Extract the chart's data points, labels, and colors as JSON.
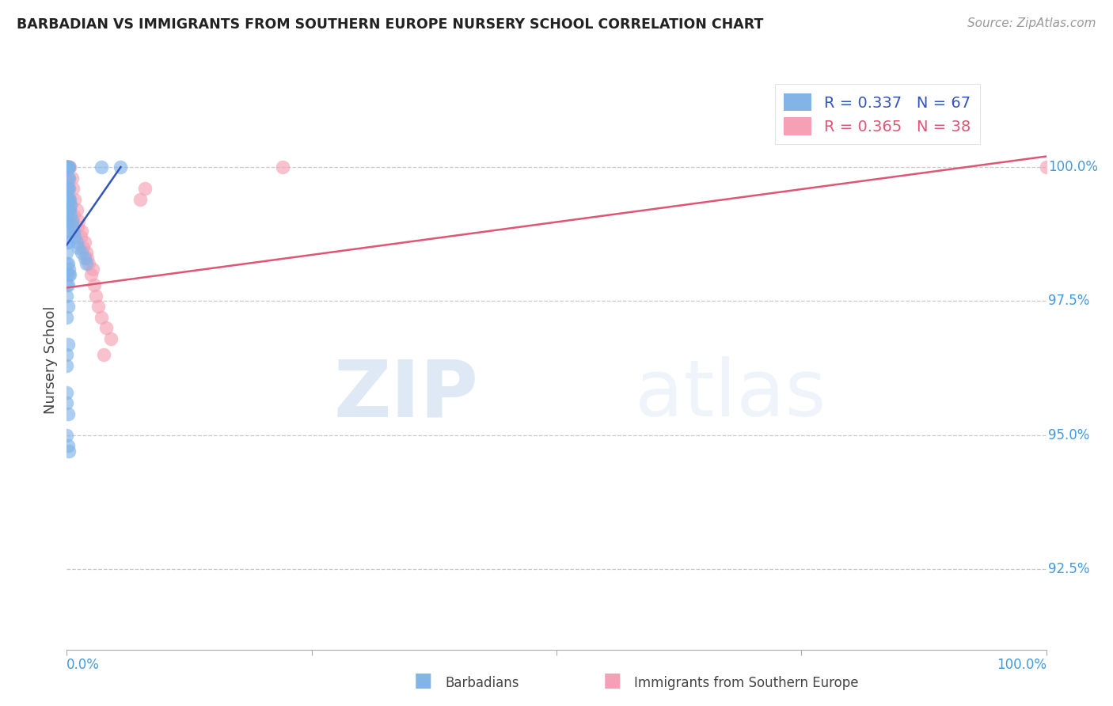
{
  "title": "BARBADIAN VS IMMIGRANTS FROM SOUTHERN EUROPE NURSERY SCHOOL CORRELATION CHART",
  "source": "Source: ZipAtlas.com",
  "ylabel": "Nursery School",
  "ylabel_right_ticks": [
    "100.0%",
    "97.5%",
    "95.0%",
    "92.5%"
  ],
  "ylabel_right_values": [
    100.0,
    97.5,
    95.0,
    92.5
  ],
  "legend_label1": "Barbadians",
  "legend_label2": "Immigrants from Southern Europe",
  "r1": 0.337,
  "n1": 67,
  "r2": 0.365,
  "n2": 38,
  "color_blue": "#82b4e8",
  "color_pink": "#f5a0b5",
  "color_blue_line": "#3355bb",
  "color_pink_line": "#e05575",
  "color_axis_label": "#4499dd",
  "xlim": [
    0.0,
    100.0
  ],
  "ylim": [
    91.0,
    101.8
  ],
  "blue_x": [
    0.0,
    0.0,
    0.0,
    0.0,
    0.0,
    0.0,
    0.0,
    0.0,
    0.0,
    0.0,
    0.0,
    0.0,
    0.0,
    0.0,
    0.0,
    0.0,
    0.0,
    0.0,
    0.0,
    0.0,
    0.1,
    0.1,
    0.1,
    0.1,
    0.1,
    0.1,
    0.1,
    0.1,
    0.1,
    0.1,
    0.2,
    0.2,
    0.2,
    0.2,
    0.2,
    0.3,
    0.3,
    0.4,
    0.4,
    0.5,
    0.6,
    0.7,
    0.8,
    1.0,
    1.2,
    1.5,
    1.8,
    2.0,
    3.5,
    5.5,
    0.0,
    0.1,
    0.2,
    0.1,
    0.0,
    0.1,
    0.2,
    0.3,
    0.0,
    0.0,
    0.1,
    0.0,
    0.0,
    0.1,
    0.0,
    0.1,
    0.2
  ],
  "blue_y": [
    100.0,
    100.0,
    100.0,
    100.0,
    100.0,
    100.0,
    100.0,
    100.0,
    100.0,
    100.0,
    99.6,
    99.4,
    99.2,
    99.0,
    98.8,
    98.6,
    98.4,
    98.2,
    98.0,
    97.8,
    100.0,
    100.0,
    100.0,
    99.8,
    99.6,
    99.4,
    99.2,
    99.0,
    98.8,
    98.6,
    100.0,
    99.8,
    99.6,
    99.4,
    99.2,
    99.4,
    99.2,
    99.3,
    99.1,
    99.0,
    98.9,
    98.8,
    98.7,
    98.6,
    98.5,
    98.4,
    98.3,
    98.2,
    100.0,
    100.0,
    97.6,
    97.8,
    98.0,
    97.4,
    97.2,
    98.2,
    98.1,
    98.0,
    96.5,
    96.3,
    96.7,
    95.8,
    95.6,
    95.4,
    95.0,
    94.8,
    94.7
  ],
  "pink_x": [
    0.0,
    0.0,
    0.0,
    0.0,
    0.1,
    0.1,
    0.2,
    0.3,
    0.5,
    0.6,
    0.8,
    1.0,
    1.2,
    1.5,
    1.8,
    2.0,
    2.2,
    2.5,
    2.8,
    3.0,
    3.2,
    3.5,
    4.0,
    4.5,
    0.4,
    0.7,
    1.1,
    1.4,
    1.7,
    2.1,
    2.6,
    3.8,
    0.2,
    0.3,
    7.5,
    8.0,
    22.0,
    100.0
  ],
  "pink_y": [
    100.0,
    100.0,
    99.8,
    99.5,
    100.0,
    99.6,
    100.0,
    100.0,
    99.8,
    99.6,
    99.4,
    99.2,
    99.0,
    98.8,
    98.6,
    98.4,
    98.2,
    98.0,
    97.8,
    97.6,
    97.4,
    97.2,
    97.0,
    96.8,
    99.3,
    99.1,
    98.9,
    98.7,
    98.5,
    98.3,
    98.1,
    96.5,
    99.2,
    99.0,
    99.4,
    99.6,
    100.0,
    100.0
  ],
  "blue_trend_x": [
    0.0,
    5.5
  ],
  "blue_trend_y": [
    98.55,
    100.0
  ],
  "pink_trend_x": [
    0.0,
    100.0
  ],
  "pink_trend_y": [
    97.75,
    100.2
  ],
  "watermark_zip": "ZIP",
  "watermark_atlas": "atlas",
  "grid_color": "#c8c8c8",
  "grid_linestyle": "--",
  "bg_color": "white"
}
